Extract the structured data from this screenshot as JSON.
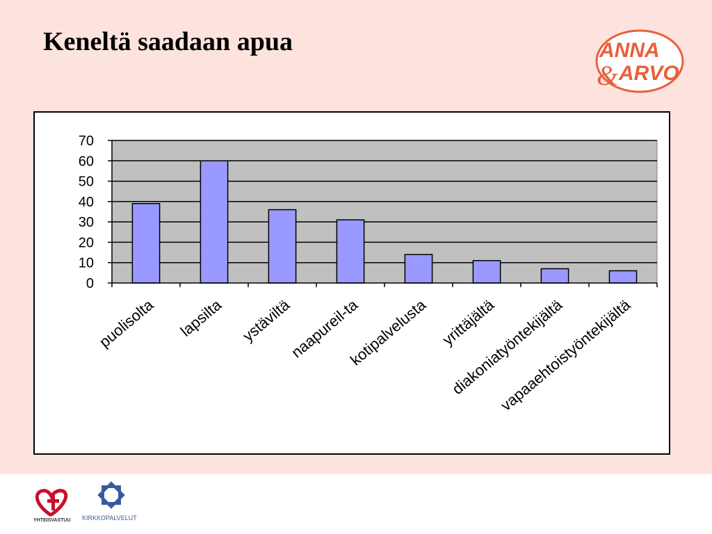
{
  "slide": {
    "title": "Keneltä saadaan apua",
    "background_color": "#fde3dd"
  },
  "logos": {
    "top_right": {
      "line1": "ANNA",
      "line2": "ARVO",
      "ampersand": "&",
      "color": "#e8603c"
    },
    "footer_left": {
      "text": "YHTEISVASTUU",
      "color": "#c8102e"
    },
    "footer_right": {
      "text": "KIRKKOPALVELUT",
      "color": "#3a5a9a"
    }
  },
  "chart_data": {
    "type": "bar",
    "title": "",
    "xlabel": "",
    "ylabel": "",
    "categories": [
      "puolisolta",
      "lapsilta",
      "ystäviltä",
      "naapureil-ta",
      "kotipalvelusta",
      "yrittäjältä",
      "diakoniatyöntekijältä",
      "vapaaehtoistyöntekijältä"
    ],
    "values": [
      39,
      60,
      36,
      31,
      14,
      11,
      7,
      6
    ],
    "ylim": [
      0,
      70
    ],
    "yticks": [
      "0",
      "10",
      "20",
      "30",
      "40",
      "50",
      "60",
      "70"
    ],
    "grid": true,
    "legend": "none",
    "bar_color": "#9999ff",
    "plot_bg_color": "#c0c0c0"
  }
}
